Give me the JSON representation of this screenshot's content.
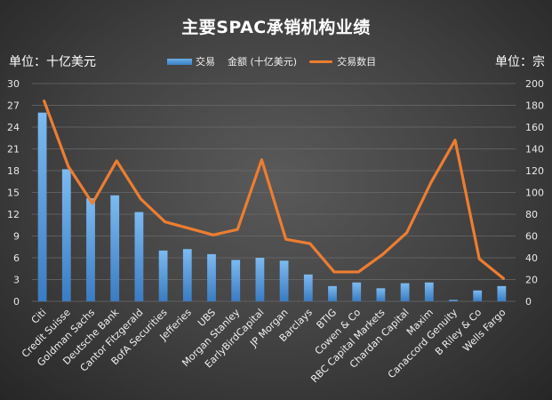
{
  "title": "主要SPAC承销机构业绩",
  "left_unit": "单位：十亿美元",
  "right_unit": "单位：宗",
  "legend": {
    "bar_label_1": "交易",
    "bar_label_2": "金额 (十亿美元)",
    "line_label": "交易数目"
  },
  "colors": {
    "bar": "#4a90d9",
    "line": "#ed7d31"
  },
  "chart_data": {
    "type": "bar",
    "title": "主要SPAC承销机构业绩",
    "categories": [
      "Citi",
      "Credit Suisse",
      "Goldman Sachs",
      "Deutsche Bank",
      "Cantor Fitzgerald",
      "BofA Securities",
      "Jefferies",
      "UBS",
      "Morgan Stanley",
      "EarlyBirdCapital",
      "JP Morgan",
      "Barclays",
      "BTIG",
      "Cowen & Co",
      "RBC Capital Markets",
      "Chardan Capital",
      "Maxim",
      "Canaccord Genuity",
      "B Riley & Co",
      "Wells Fargo"
    ],
    "series": [
      {
        "name": "交易 金额 (十亿美元)",
        "type": "bar",
        "axis": "left",
        "values": [
          26.0,
          18.2,
          14.2,
          14.6,
          12.3,
          7.0,
          7.2,
          6.5,
          5.7,
          6.0,
          5.6,
          3.7,
          2.1,
          2.6,
          1.8,
          2.5,
          2.6,
          0.2,
          1.5,
          2.1
        ]
      },
      {
        "name": "交易数目",
        "type": "line",
        "axis": "right",
        "values": [
          184,
          124,
          90,
          129,
          94,
          73,
          67,
          61,
          66,
          130,
          57,
          53,
          27,
          27,
          43,
          63,
          109,
          148,
          39,
          21
        ]
      }
    ],
    "y_left": {
      "min": 0,
      "max": 30,
      "ticks": [
        0,
        3,
        6,
        9,
        12,
        15,
        18,
        21,
        24,
        27,
        30
      ]
    },
    "y_right": {
      "min": 0,
      "max": 200,
      "ticks": [
        0,
        20,
        40,
        60,
        80,
        100,
        120,
        140,
        160,
        180,
        200
      ]
    },
    "grid": true,
    "legend_position": "top"
  }
}
